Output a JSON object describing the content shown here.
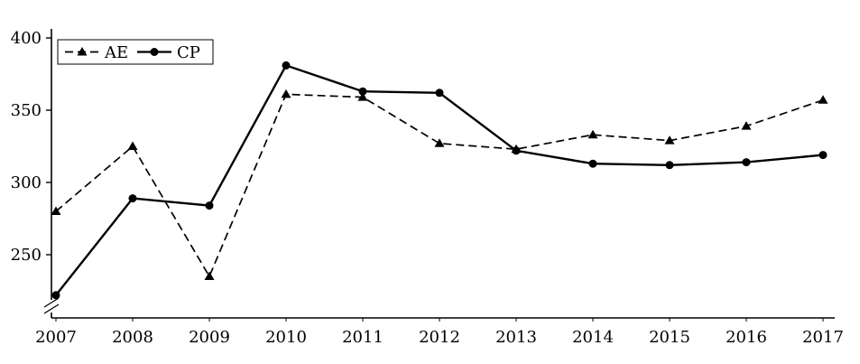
{
  "figure": {
    "background": "#ffffff",
    "axis_color": "#000000"
  },
  "legend": {
    "items": [
      {
        "label": "AE"
      },
      {
        "label": "CP"
      }
    ]
  },
  "chart_data": {
    "type": "line",
    "title": "",
    "xlabel": "",
    "ylabel": "",
    "x": [
      "2007",
      "2008",
      "2009",
      "2010",
      "2011",
      "2012",
      "2013",
      "2014",
      "2015",
      "2016",
      "2017"
    ],
    "series": [
      {
        "name": "AE",
        "line_style": "dashed",
        "marker": "triangle",
        "color": "#000000",
        "values": [
          280,
          325,
          235,
          361,
          359,
          327,
          323,
          333,
          329,
          339,
          357
        ]
      },
      {
        "name": "CP",
        "line_style": "solid",
        "marker": "circle",
        "color": "#000000",
        "values": [
          222,
          289,
          284,
          381,
          363,
          362,
          322,
          313,
          312,
          314,
          319
        ]
      }
    ],
    "yticks": [
      250,
      300,
      350,
      400
    ],
    "ylim": [
      220,
      400
    ],
    "axis_break": true,
    "grid": false,
    "legend_position": "top-left-inside"
  }
}
